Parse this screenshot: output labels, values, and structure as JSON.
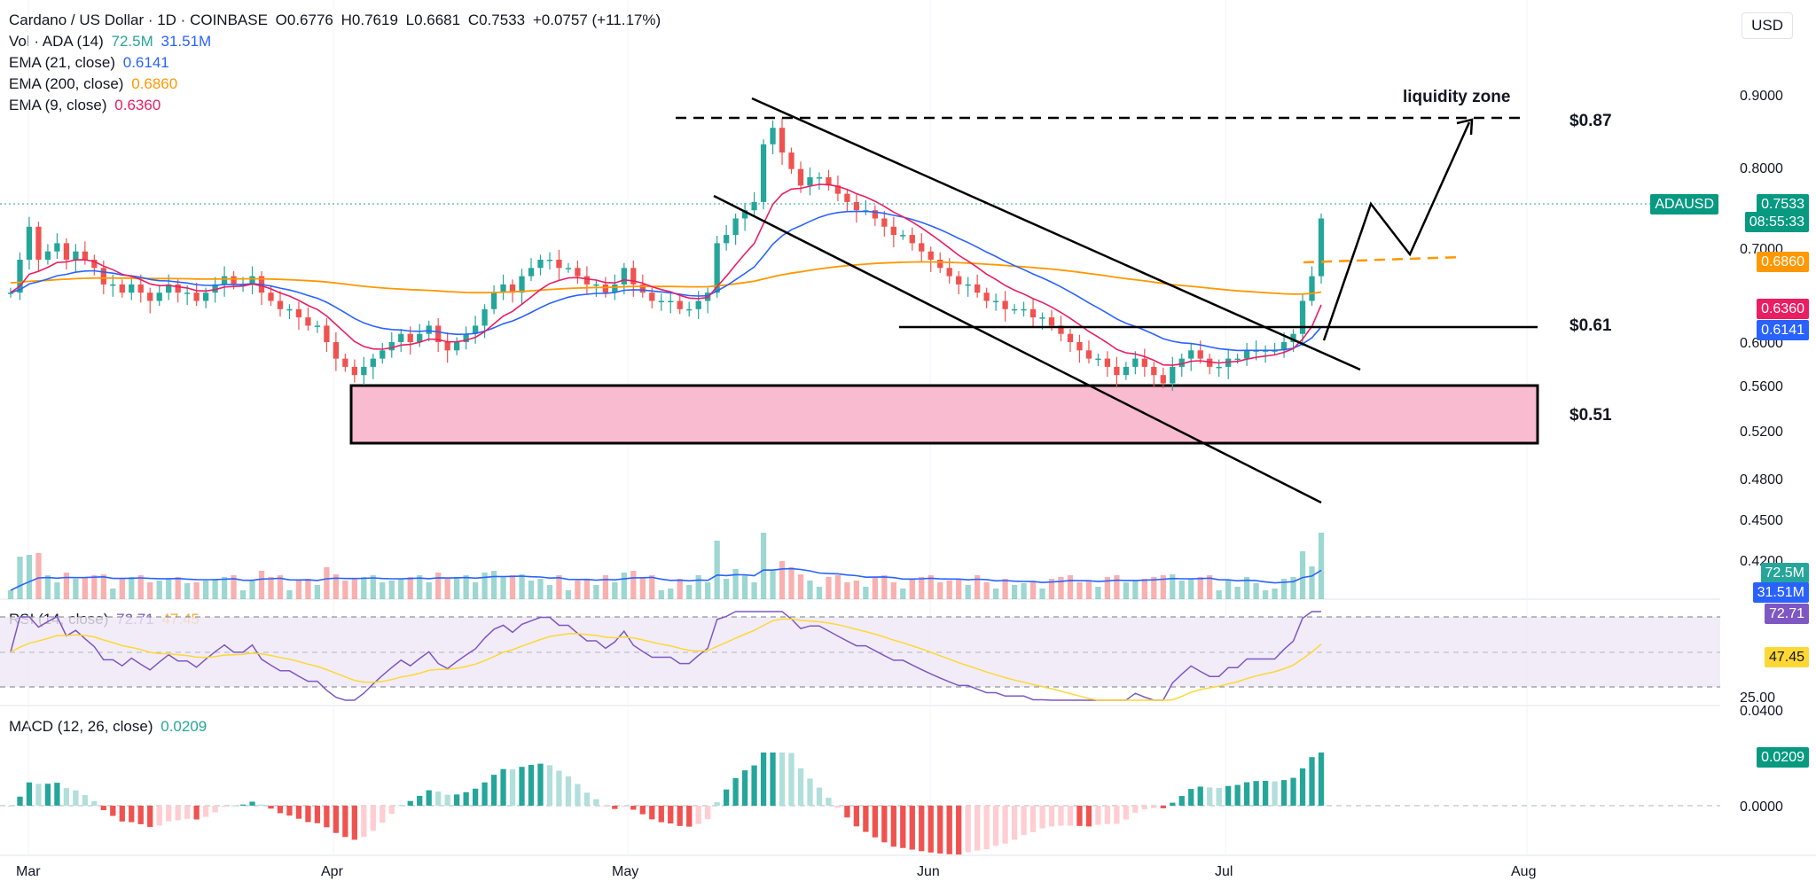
{
  "header": {
    "title": "Cardano / US Dollar · 1D · COINBASE",
    "open": "O0.6776",
    "high": "H0.7619",
    "low": "L0.6681",
    "close": "C0.7533",
    "change": "+0.0757 (+11.17%)"
  },
  "legend": {
    "vol_label": "Vol · ADA (14)",
    "vol_value": "72.5M",
    "vol_ma_value": "31.51M",
    "ema21_label": "EMA (21, close)",
    "ema21_value": "0.6141",
    "ema200_label": "EMA (200, close)",
    "ema200_value": "0.6860",
    "ema9_label": "EMA (9, close)",
    "ema9_value": "0.6360",
    "rsi_label": "RSI (14, close)",
    "rsi_value": "72.71",
    "rsi_ma_value": "47.45",
    "macd_label": "MACD (12, 26, close)",
    "macd_value": "0.0209"
  },
  "currency": "USD",
  "price_tags": {
    "symbol": "ADAUSD",
    "last": "0.7533",
    "countdown": "08:55:33",
    "ema200": "0.6860",
    "ema9": "0.6360",
    "ema21": "0.6141",
    "vol": "72.5M",
    "vol_ma": "31.51M",
    "rsi": "72.71",
    "rsi_ma": "47.45",
    "macd": "0.0209"
  },
  "annotations": {
    "liquidity": "liquidity zone",
    "level_87": "$0.87",
    "level_61": "$0.61",
    "level_51": "$0.51"
  },
  "colors": {
    "up": "#26a69a",
    "down": "#ef5350",
    "ema21": "#2962ff",
    "ema200": "#ff9800",
    "ema9": "#e91e63",
    "rsi": "#7e57c2",
    "rsi_ma": "#fdd835",
    "zone": "#f8bbd0",
    "text": "#131722"
  },
  "chart_data": {
    "type": "candlestick",
    "title": "Cardano / US Dollar · 1D · COINBASE",
    "x_labels": [
      "Mar",
      "Apr",
      "May",
      "Jun",
      "Jul",
      "Aug"
    ],
    "price_ticks": [
      "0.9000",
      "0.8000",
      "0.7000",
      "0.6000",
      "0.5600",
      "0.5200",
      "0.4800",
      "0.4500",
      "0.4200"
    ],
    "rsi_ticks": [
      "25.00"
    ],
    "macd_ticks": [
      "0.0400",
      "0.0000"
    ],
    "closes": [
      0.66,
      0.7,
      0.74,
      0.7,
      0.71,
      0.72,
      0.7,
      0.71,
      0.7,
      0.69,
      0.67,
      0.67,
      0.66,
      0.67,
      0.66,
      0.65,
      0.66,
      0.67,
      0.66,
      0.66,
      0.65,
      0.66,
      0.67,
      0.68,
      0.67,
      0.67,
      0.68,
      0.66,
      0.65,
      0.64,
      0.64,
      0.63,
      0.62,
      0.62,
      0.6,
      0.58,
      0.57,
      0.56,
      0.57,
      0.58,
      0.59,
      0.6,
      0.61,
      0.6,
      0.61,
      0.62,
      0.6,
      0.59,
      0.6,
      0.61,
      0.62,
      0.64,
      0.66,
      0.67,
      0.66,
      0.68,
      0.69,
      0.7,
      0.7,
      0.69,
      0.69,
      0.68,
      0.67,
      0.67,
      0.66,
      0.67,
      0.69,
      0.67,
      0.66,
      0.65,
      0.65,
      0.65,
      0.64,
      0.64,
      0.65,
      0.66,
      0.72,
      0.73,
      0.75,
      0.76,
      0.77,
      0.84,
      0.86,
      0.83,
      0.81,
      0.79,
      0.8,
      0.8,
      0.79,
      0.78,
      0.77,
      0.76,
      0.76,
      0.75,
      0.74,
      0.73,
      0.73,
      0.72,
      0.71,
      0.7,
      0.69,
      0.68,
      0.67,
      0.67,
      0.66,
      0.65,
      0.65,
      0.64,
      0.64,
      0.64,
      0.63,
      0.63,
      0.62,
      0.61,
      0.6,
      0.59,
      0.58,
      0.58,
      0.57,
      0.56,
      0.57,
      0.58,
      0.57,
      0.56,
      0.55,
      0.57,
      0.58,
      0.59,
      0.58,
      0.57,
      0.57,
      0.58,
      0.58,
      0.59,
      0.59,
      0.59,
      0.59,
      0.6,
      0.61,
      0.65,
      0.68,
      0.75
    ]
  }
}
